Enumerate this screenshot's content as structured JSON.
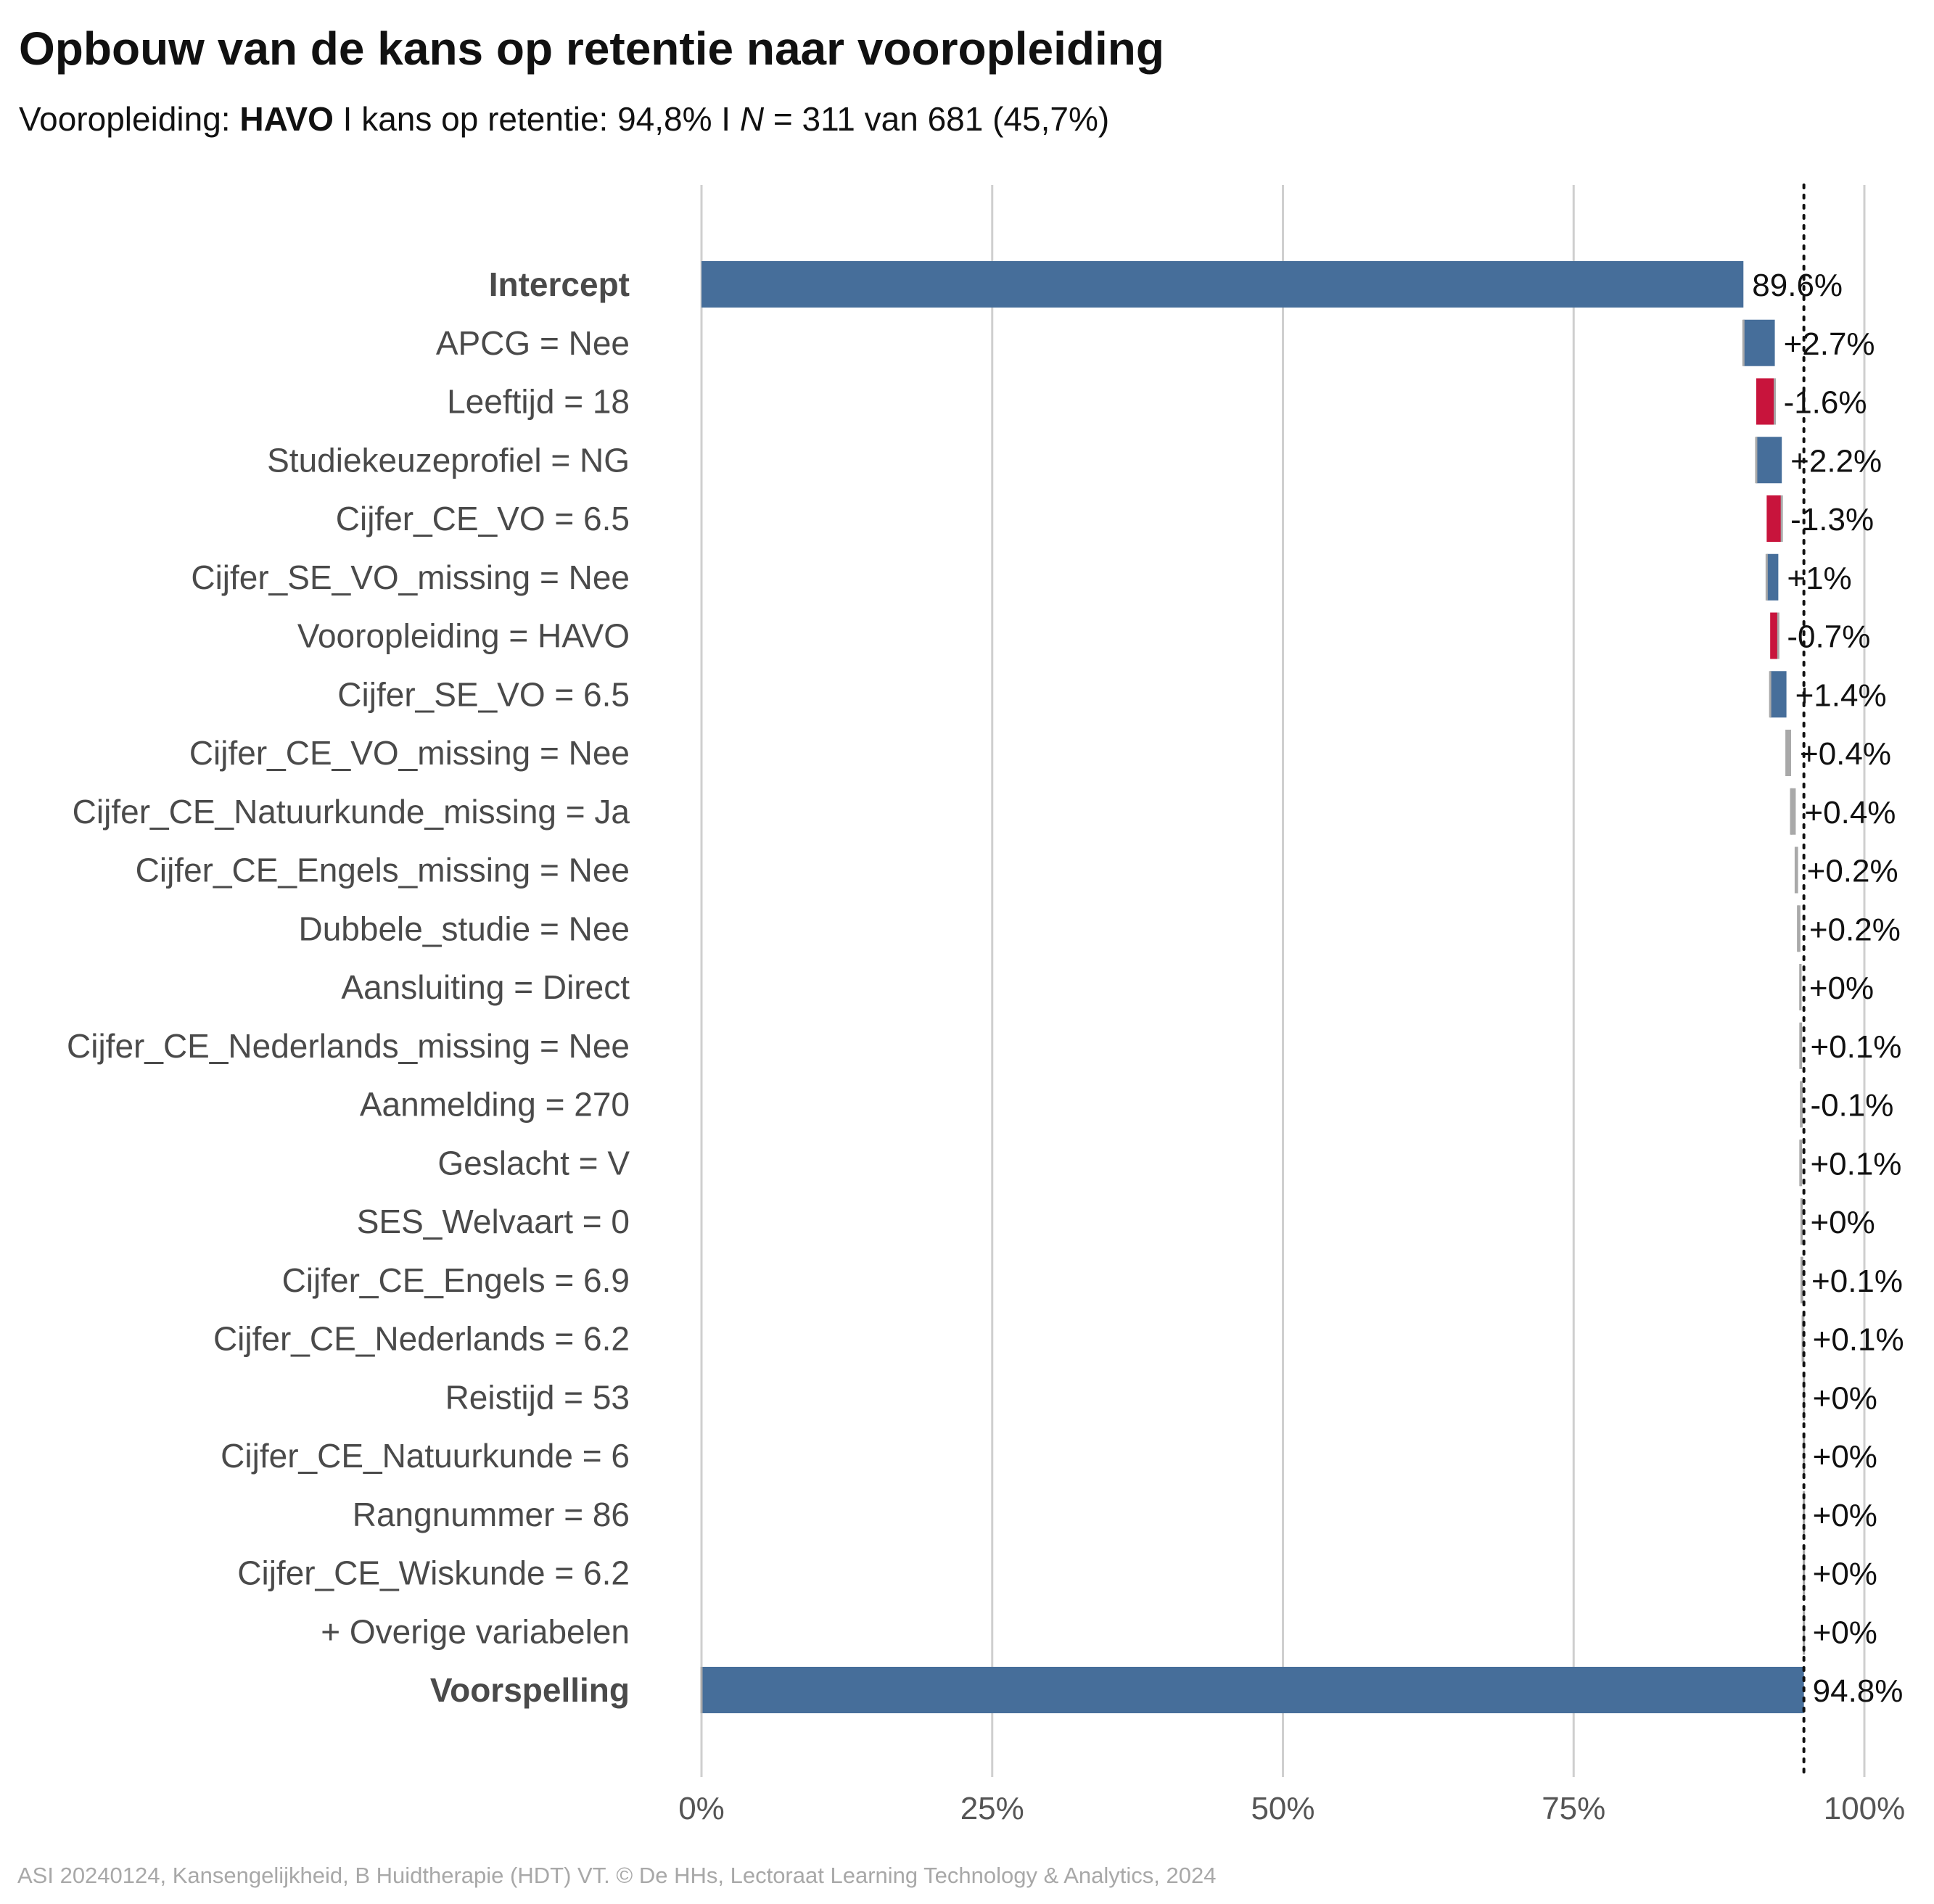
{
  "title": "Opbouw van de kans op retentie naar vooropleiding",
  "subtitle": {
    "label": "Vooropleiding: ",
    "value": "HAVO",
    "sep1": " I kans op retentie: 94,8% I ",
    "n_label": "N",
    "n_text": " = 311 van 681 (45,7%)"
  },
  "caption": "ASI 20240124, Kansengelijkheid, B Huidtherapie (HDT) VT. © De HHs, Lectoraat Learning Technology & Analytics, 2024",
  "colors": {
    "positive": "#466e9a",
    "negative": "#c8143c",
    "neutral": "#a9a9a9",
    "grid": "#cfcfcf",
    "label": "#4a4a4a",
    "value": "#111111",
    "axis_tick": "#555555"
  },
  "chart_data": {
    "type": "waterfall",
    "xlim": [
      0,
      100
    ],
    "x_ticks": [
      "0%",
      "25%",
      "50%",
      "75%",
      "100%"
    ],
    "x_tick_values": [
      0,
      25,
      50,
      75,
      100
    ],
    "reference_line": 94.8,
    "grid": true,
    "items": [
      {
        "label": "Intercept",
        "kind": "total",
        "value": 89.6,
        "display": "89.6%",
        "bold": true
      },
      {
        "label": "APCG = Nee",
        "kind": "delta",
        "value": 2.7,
        "display": "+2.7%"
      },
      {
        "label": "Leeftijd = 18",
        "kind": "delta",
        "value": -1.6,
        "display": "-1.6%"
      },
      {
        "label": "Studiekeuzeprofiel = NG",
        "kind": "delta",
        "value": 2.2,
        "display": "+2.2%"
      },
      {
        "label": "Cijfer_CE_VO = 6.5",
        "kind": "delta",
        "value": -1.3,
        "display": "-1.3%"
      },
      {
        "label": "Cijfer_SE_VO_missing = Nee",
        "kind": "delta",
        "value": 1.0,
        "display": "+1%"
      },
      {
        "label": "Vooropleiding = HAVO",
        "kind": "delta",
        "value": -0.7,
        "display": "-0.7%"
      },
      {
        "label": "Cijfer_SE_VO = 6.5",
        "kind": "delta",
        "value": 1.4,
        "display": "+1.4%"
      },
      {
        "label": "Cijfer_CE_VO_missing = Nee",
        "kind": "delta",
        "value": 0.4,
        "display": "+0.4%"
      },
      {
        "label": "Cijfer_CE_Natuurkunde_missing = Ja",
        "kind": "delta",
        "value": 0.4,
        "display": "+0.4%"
      },
      {
        "label": "Cijfer_CE_Engels_missing = Nee",
        "kind": "delta",
        "value": 0.2,
        "display": "+0.2%"
      },
      {
        "label": "Dubbele_studie = Nee",
        "kind": "delta",
        "value": 0.2,
        "display": "+0.2%"
      },
      {
        "label": "Aansluiting = Direct",
        "kind": "delta",
        "value": 0.0,
        "display": "+0%"
      },
      {
        "label": "Cijfer_CE_Nederlands_missing = Nee",
        "kind": "delta",
        "value": 0.1,
        "display": "+0.1%"
      },
      {
        "label": "Aanmelding = 270",
        "kind": "delta",
        "value": -0.1,
        "display": "-0.1%"
      },
      {
        "label": "Geslacht = V",
        "kind": "delta",
        "value": 0.1,
        "display": "+0.1%"
      },
      {
        "label": "SES_Welvaart = 0",
        "kind": "delta",
        "value": 0.0,
        "display": "+0%"
      },
      {
        "label": "Cijfer_CE_Engels = 6.9",
        "kind": "delta",
        "value": 0.1,
        "display": "+0.1%"
      },
      {
        "label": "Cijfer_CE_Nederlands = 6.2",
        "kind": "delta",
        "value": 0.1,
        "display": "+0.1%"
      },
      {
        "label": "Reistijd = 53",
        "kind": "delta",
        "value": 0.0,
        "display": "+0%"
      },
      {
        "label": "Cijfer_CE_Natuurkunde = 6",
        "kind": "delta",
        "value": 0.0,
        "display": "+0%"
      },
      {
        "label": "Rangnummer = 86",
        "kind": "delta",
        "value": 0.0,
        "display": "+0%"
      },
      {
        "label": "Cijfer_CE_Wiskunde = 6.2",
        "kind": "delta",
        "value": 0.0,
        "display": "+0%"
      },
      {
        "label": "+ Overige variabelen",
        "kind": "delta",
        "value": 0.0,
        "display": "+0%"
      },
      {
        "label": "Voorspelling",
        "kind": "total",
        "value": 94.8,
        "display": "94.8%",
        "bold": true
      }
    ]
  }
}
